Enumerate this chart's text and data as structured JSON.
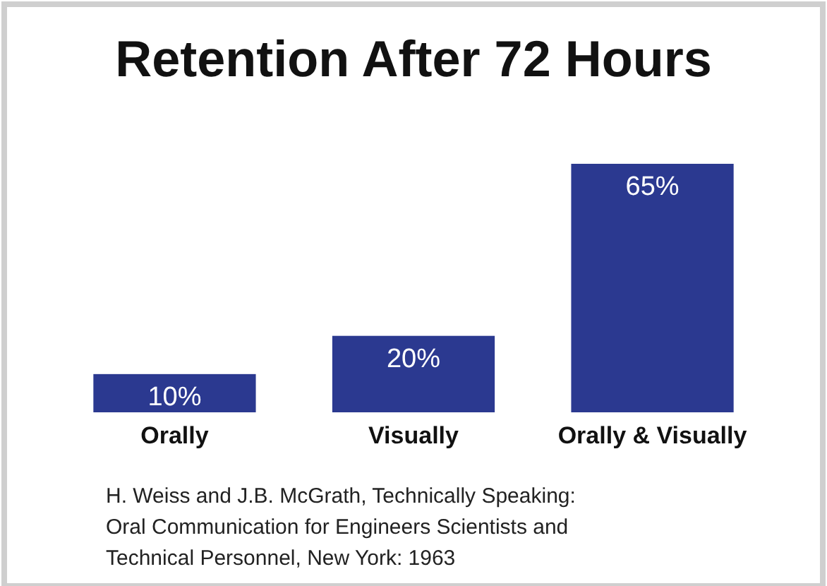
{
  "chart_data": {
    "type": "bar",
    "title": "Retention After 72 Hours",
    "categories": [
      "Orally",
      "Visually",
      "Orally & Visually"
    ],
    "values": [
      10,
      20,
      65
    ],
    "value_labels": [
      "10%",
      "20%",
      "65%"
    ],
    "color": "#2b3990",
    "annotations": [
      "H. Weiss and J.B. McGrath, Technically Speaking: Oral Communication for Engineers Scientists and Technical Personnel, New York: 1963"
    ]
  }
}
